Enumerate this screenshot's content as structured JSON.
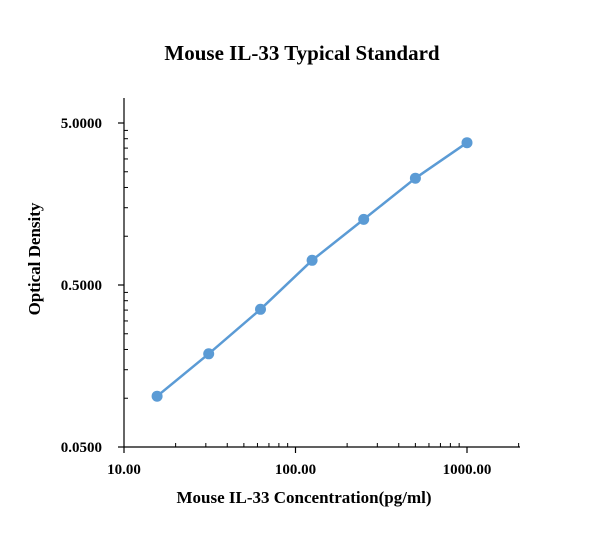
{
  "colors": {
    "series": "#5b9bd5",
    "axis": "#000000"
  },
  "chart_data": {
    "type": "line",
    "title": "Mouse IL-33 Typical Standard",
    "xlabel": "Mouse IL-33 Concentration(pg/ml)",
    "ylabel": "Optical Density",
    "x_scale": "log",
    "y_scale": "log",
    "xlim": [
      10,
      2000
    ],
    "ylim": [
      0.05,
      10
    ],
    "x_ticks": [
      10,
      100,
      1000
    ],
    "x_tick_labels": [
      "10.00",
      "100.00",
      "1000.00"
    ],
    "y_ticks": [
      0.05,
      0.5,
      5
    ],
    "y_tick_labels": [
      "0.0500",
      "0.5000",
      "5.0000"
    ],
    "grid": false,
    "legend": "none",
    "markers": true,
    "series": [
      {
        "x": [
          15.6,
          31.2,
          62.5,
          125,
          250,
          500,
          1000
        ],
        "y": [
          0.103,
          0.188,
          0.354,
          0.71,
          1.27,
          2.28,
          3.78
        ]
      }
    ]
  }
}
